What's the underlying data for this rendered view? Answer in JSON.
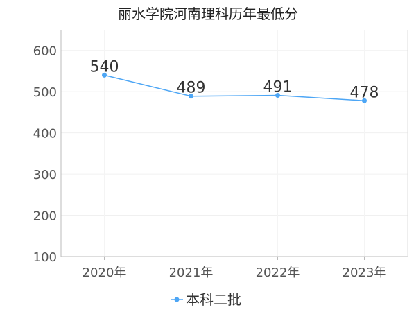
{
  "chart_data": {
    "type": "line",
    "title": "丽水学院河南理科历年最低分",
    "categories": [
      "2020年",
      "2021年",
      "2022年",
      "2023年"
    ],
    "series": [
      {
        "name": "本科二批",
        "values": [
          540,
          489,
          491,
          478
        ],
        "color": "#4da6f5"
      }
    ],
    "ylim": [
      100,
      650
    ],
    "yticks": [
      100,
      200,
      300,
      400,
      500,
      600
    ],
    "grid": true,
    "legend": "bottom"
  }
}
